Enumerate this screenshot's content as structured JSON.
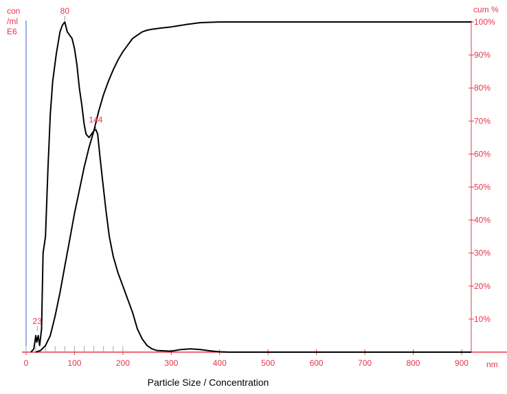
{
  "chart_data": {
    "type": "line",
    "caption": "Particle Size / Concentration",
    "left_axis": {
      "label_lines": [
        "con",
        "/ml",
        "E6"
      ],
      "color": "#3a5fcd"
    },
    "right_axis": {
      "label": "cum %",
      "ticks": [
        "10%",
        "20%",
        "30%",
        "40%",
        "50%",
        "60%",
        "70%",
        "80%",
        "90%",
        "100%"
      ],
      "color": "#e8334a",
      "ylim": [
        0,
        100
      ]
    },
    "x_axis": {
      "unit": "nm",
      "ticks": [
        "0",
        "100",
        "200",
        "300",
        "400",
        "500",
        "600",
        "700",
        "800",
        "900"
      ],
      "xlim": [
        0,
        920
      ]
    },
    "peak_labels": [
      {
        "text": "80",
        "x": 80,
        "y": 100
      },
      {
        "text": "144",
        "x": 144,
        "y": 67
      },
      {
        "text": "23",
        "x": 23,
        "y": 6
      }
    ],
    "series": [
      {
        "kind": "concentration",
        "points": [
          [
            10,
            0
          ],
          [
            16,
            1
          ],
          [
            20,
            5
          ],
          [
            22,
            3
          ],
          [
            25,
            5
          ],
          [
            28,
            2
          ],
          [
            32,
            7
          ],
          [
            35,
            30
          ],
          [
            40,
            35
          ],
          [
            45,
            55
          ],
          [
            50,
            72
          ],
          [
            55,
            82
          ],
          [
            62,
            90
          ],
          [
            70,
            97
          ],
          [
            75,
            99
          ],
          [
            80,
            100
          ],
          [
            85,
            97
          ],
          [
            90,
            96
          ],
          [
            95,
            95
          ],
          [
            100,
            92
          ],
          [
            105,
            87
          ],
          [
            110,
            80
          ],
          [
            115,
            75
          ],
          [
            120,
            69
          ],
          [
            124,
            66
          ],
          [
            130,
            65
          ],
          [
            135,
            66
          ],
          [
            140,
            67
          ],
          [
            144,
            67.5
          ],
          [
            148,
            66
          ],
          [
            152,
            60
          ],
          [
            158,
            52
          ],
          [
            165,
            43
          ],
          [
            172,
            35
          ],
          [
            180,
            29
          ],
          [
            190,
            24
          ],
          [
            200,
            20
          ],
          [
            210,
            16
          ],
          [
            220,
            12
          ],
          [
            230,
            7
          ],
          [
            240,
            4
          ],
          [
            250,
            2
          ],
          [
            260,
            1
          ],
          [
            270,
            0.5
          ],
          [
            300,
            0.3
          ],
          [
            320,
            0.8
          ],
          [
            340,
            1
          ],
          [
            360,
            0.8
          ],
          [
            380,
            0.4
          ],
          [
            400,
            0.1
          ],
          [
            420,
            0
          ],
          [
            920,
            0
          ]
        ]
      },
      {
        "kind": "cumulative",
        "points": [
          [
            20,
            0
          ],
          [
            30,
            0.5
          ],
          [
            40,
            2
          ],
          [
            50,
            5
          ],
          [
            60,
            11
          ],
          [
            70,
            18
          ],
          [
            80,
            26
          ],
          [
            90,
            34
          ],
          [
            100,
            42
          ],
          [
            110,
            49
          ],
          [
            120,
            56
          ],
          [
            130,
            62
          ],
          [
            140,
            67
          ],
          [
            150,
            73
          ],
          [
            160,
            78
          ],
          [
            170,
            82
          ],
          [
            180,
            85.5
          ],
          [
            190,
            88.5
          ],
          [
            200,
            91
          ],
          [
            210,
            93
          ],
          [
            220,
            95
          ],
          [
            230,
            96
          ],
          [
            240,
            97
          ],
          [
            250,
            97.5
          ],
          [
            260,
            97.8
          ],
          [
            280,
            98.2
          ],
          [
            300,
            98.5
          ],
          [
            330,
            99.2
          ],
          [
            360,
            99.8
          ],
          [
            400,
            100
          ],
          [
            920,
            100
          ]
        ]
      }
    ]
  }
}
